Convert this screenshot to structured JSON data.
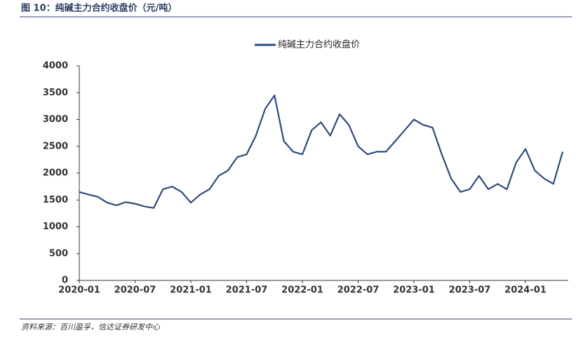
{
  "chart_data": {
    "type": "line",
    "title": "图 10：纯碱主力合约收盘价（元/吨）",
    "source": "资料来源：百川盈孚，信达证券研发中心",
    "x": [
      "2020-01",
      "2020-02",
      "2020-03",
      "2020-04",
      "2020-05",
      "2020-06",
      "2020-07",
      "2020-08",
      "2020-09",
      "2020-10",
      "2020-11",
      "2020-12",
      "2021-01",
      "2021-02",
      "2021-03",
      "2021-04",
      "2021-05",
      "2021-06",
      "2021-07",
      "2021-08",
      "2021-09",
      "2021-10",
      "2021-11",
      "2021-12",
      "2022-01",
      "2022-02",
      "2022-03",
      "2022-04",
      "2022-05",
      "2022-06",
      "2022-07",
      "2022-08",
      "2022-09",
      "2022-10",
      "2022-11",
      "2022-12",
      "2023-01",
      "2023-02",
      "2023-03",
      "2023-04",
      "2023-05",
      "2023-06",
      "2023-07",
      "2023-08",
      "2023-09",
      "2023-10",
      "2023-11",
      "2023-12",
      "2024-01",
      "2024-02",
      "2024-03",
      "2024-04",
      "2024-05"
    ],
    "series": [
      {
        "name": "纯碱主力合约收盘价",
        "color": "#2f4a7c",
        "values": [
          1650,
          1600,
          1560,
          1450,
          1400,
          1460,
          1430,
          1380,
          1350,
          1700,
          1750,
          1650,
          1450,
          1600,
          1700,
          1950,
          2050,
          2300,
          2350,
          2700,
          3200,
          3450,
          2600,
          2400,
          2350,
          2800,
          2950,
          2700,
          3100,
          2900,
          2500,
          2350,
          2400,
          2400,
          2600,
          2800,
          3000,
          2900,
          2850,
          2350,
          1900,
          1650,
          1700,
          1950,
          1700,
          1800,
          1700,
          2200,
          2450,
          2050,
          1900,
          1800,
          2400
        ]
      }
    ],
    "xticks": [
      "2020-01",
      "2020-07",
      "2021-01",
      "2021-07",
      "2022-01",
      "2022-07",
      "2023-01",
      "2023-07",
      "2024-01"
    ],
    "ylim": [
      0,
      4000
    ],
    "yticks": [
      0,
      500,
      1000,
      1500,
      2000,
      2500,
      3000,
      3500,
      4000
    ],
    "legend": "top"
  }
}
